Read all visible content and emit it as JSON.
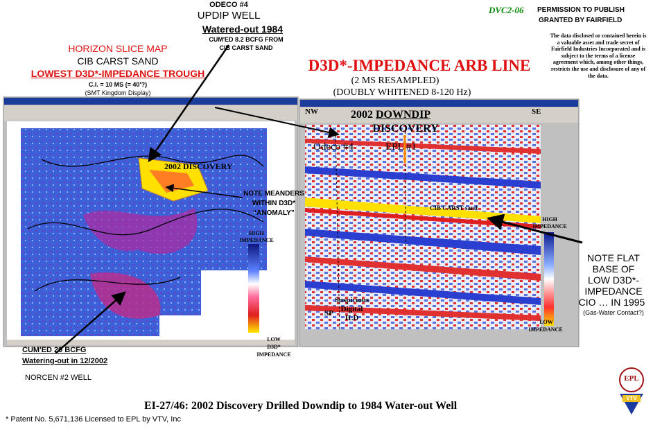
{
  "header": {
    "odeco": "ODECO #4",
    "updip": "UPDIP WELL",
    "watered": "Watered-out 1984",
    "cum1": "CUM'ED 8.2 BCFG FROM",
    "cum2": "CIB CARST SAND"
  },
  "permission": {
    "code": "DVC2-06",
    "line1": "PERMISSION TO PUBLISH",
    "line2": "GRANTED BY FAIRFIELD",
    "disclaimer": "The data disclosed or contained herein is a valuable asset and trade secret of Fairfield Industries Incorporated and is subject to the terms of a license agreement which, among other things, restricts the use and disclosure of any of the data."
  },
  "map_title": {
    "line1": "HORIZON SLICE MAP",
    "line2": "CIB CARST SAND",
    "line3": "LOWEST D3D*-IMPEDANCE TROUGH",
    "line4": "C.I. = 10 MS (= 40'?)",
    "line5": "(SMT Kingdom Display)"
  },
  "arb_title": {
    "line1": "D3D*-IMPEDANCE ARB LINE",
    "line2": "(2 MS RESAMPLED)",
    "line3": "(DOUBLY WHITENED 8-120 Hz)"
  },
  "seismic": {
    "nw": "NW",
    "se": "SE",
    "discovery1": "2002",
    "discovery2": "DOWNDIP",
    "discovery3": "DISCOVERY",
    "odeco": "Odeco #4",
    "epl": "EPL #1",
    "sand": "CIB CARST sand",
    "high1": "HIGH",
    "high2": "IMPEDANCE",
    "low1": "LOW",
    "low2": "IMPEDANCE",
    "suspicious1": "Suspicious",
    "suspicious2": "Digital",
    "suspicious3": "ILD",
    "sp": "SP"
  },
  "map": {
    "discovery": "2002 DISCOVERY",
    "high1": "HIGH",
    "high2": "IMPEDANCE",
    "low1": "LOW",
    "low2": "D3D*",
    "low3": "IMPEDANCE"
  },
  "notes": {
    "meanders1": "NOTE MEANDERS",
    "meanders2": "WITHIN D3D*",
    "meanders3": "“ANOMALY”",
    "flat1": "NOTE FLAT",
    "flat2": "BASE OF",
    "flat3": "LOW D3D*-",
    "flat4": "IMPEDANCE",
    "flat5": "CIO … IN 1995",
    "flat6": "(Gas-Water Contact?)"
  },
  "norcen": {
    "cum": "CUM'ED 29 BCFG",
    "watering": "Watering-out in 12/2002",
    "well": "NORCEN #2 WELL"
  },
  "footer": {
    "caption": "EI-27/46:  2002 Discovery Drilled Downdip to 1984 Water-out Well",
    "patent": "* Patent No. 5,671,136 Licensed to EPL by VTV, Inc"
  },
  "logos": {
    "epl": "EPL",
    "vtv": "VTV"
  }
}
